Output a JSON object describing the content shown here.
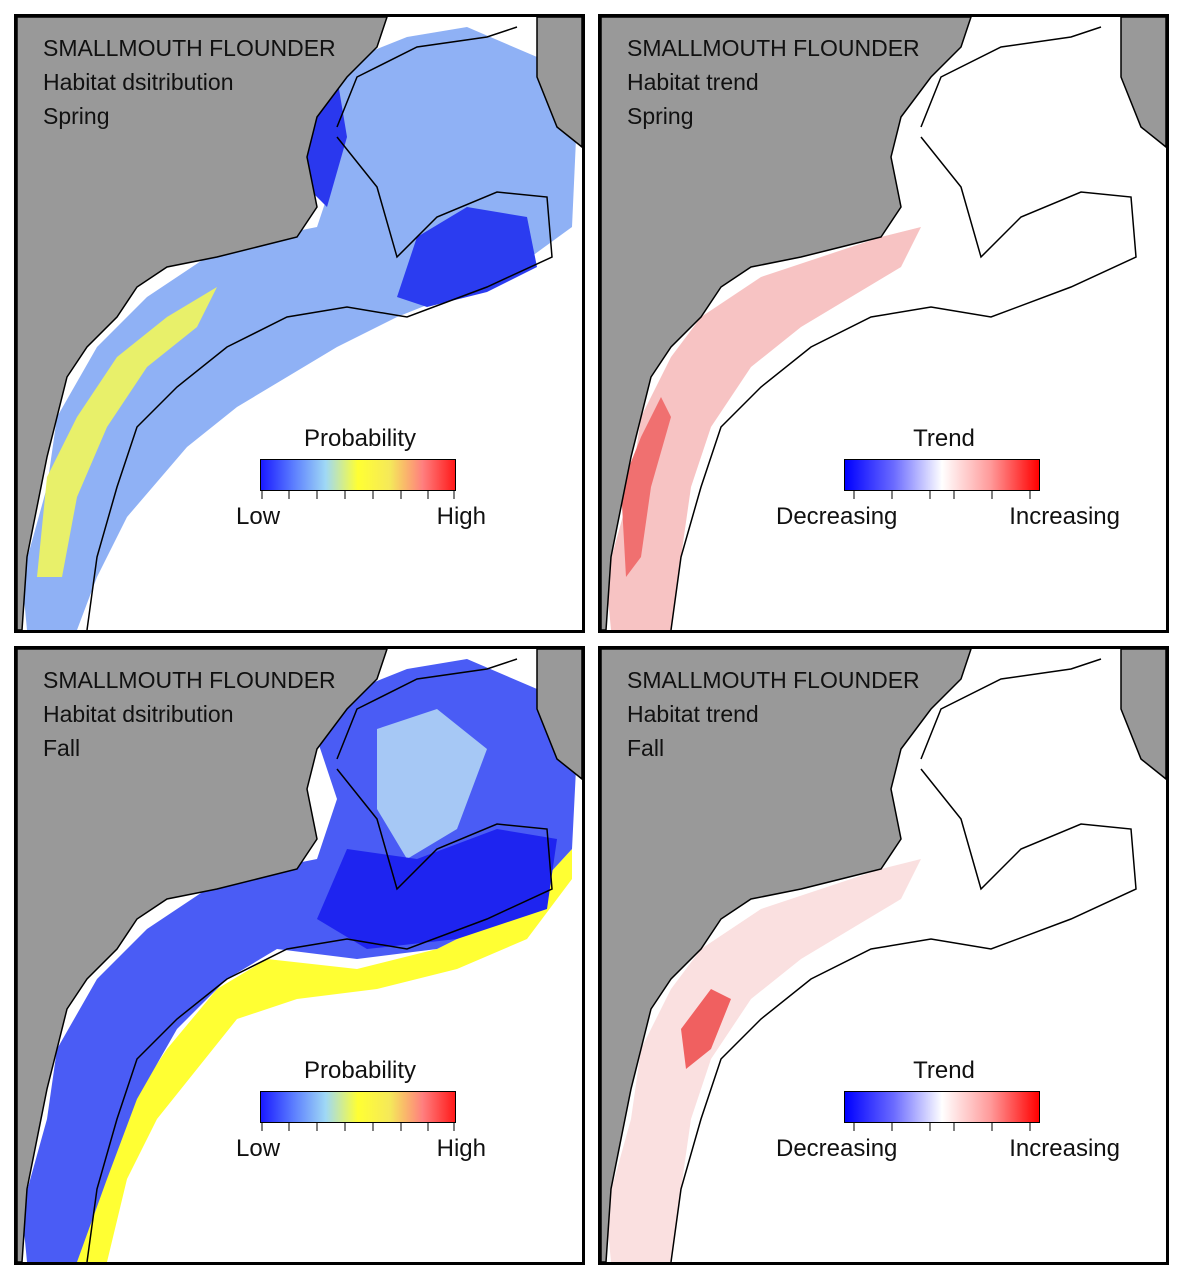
{
  "panels": [
    {
      "id": "spring-distribution",
      "species": "SMALLMOUTH FLOUNDER",
      "metric": "Habitat dsitribution",
      "season": "Spring",
      "legend": {
        "title": "Probability",
        "low": "Low",
        "high": "High"
      },
      "colors": [
        "#1a1aff",
        "#5b7dff",
        "#9fd8f5",
        "#ffff33",
        "#f5e85a",
        "#ff7f7f",
        "#ff1a1a"
      ]
    },
    {
      "id": "spring-trend",
      "species": "SMALLMOUTH FLOUNDER",
      "metric": "Habitat trend",
      "season": "Spring",
      "legend": {
        "title": "Trend",
        "low": "Decreasing",
        "high": "Increasing"
      },
      "colors": [
        "#0000ff",
        "#6a6aff",
        "#ffffff",
        "#ff9a9a",
        "#ff0000"
      ]
    },
    {
      "id": "fall-distribution",
      "species": "SMALLMOUTH FLOUNDER",
      "metric": "Habitat dsitribution",
      "season": "Fall",
      "legend": {
        "title": "Probability",
        "low": "Low",
        "high": "High"
      },
      "colors": [
        "#1a1aff",
        "#5b7dff",
        "#9fd8f5",
        "#ffff33",
        "#f5e85a",
        "#ff7f7f",
        "#ff1a1a"
      ]
    },
    {
      "id": "fall-trend",
      "species": "SMALLMOUTH FLOUNDER",
      "metric": "Habitat trend",
      "season": "Fall",
      "legend": {
        "title": "Trend",
        "low": "Decreasing",
        "high": "Increasing"
      },
      "colors": [
        "#0000ff",
        "#6a6aff",
        "#ffffff",
        "#ff9a9a",
        "#ff0000"
      ]
    }
  ],
  "map_style": {
    "land": "#999999",
    "coast": "#000000",
    "water": "#ffffff"
  }
}
